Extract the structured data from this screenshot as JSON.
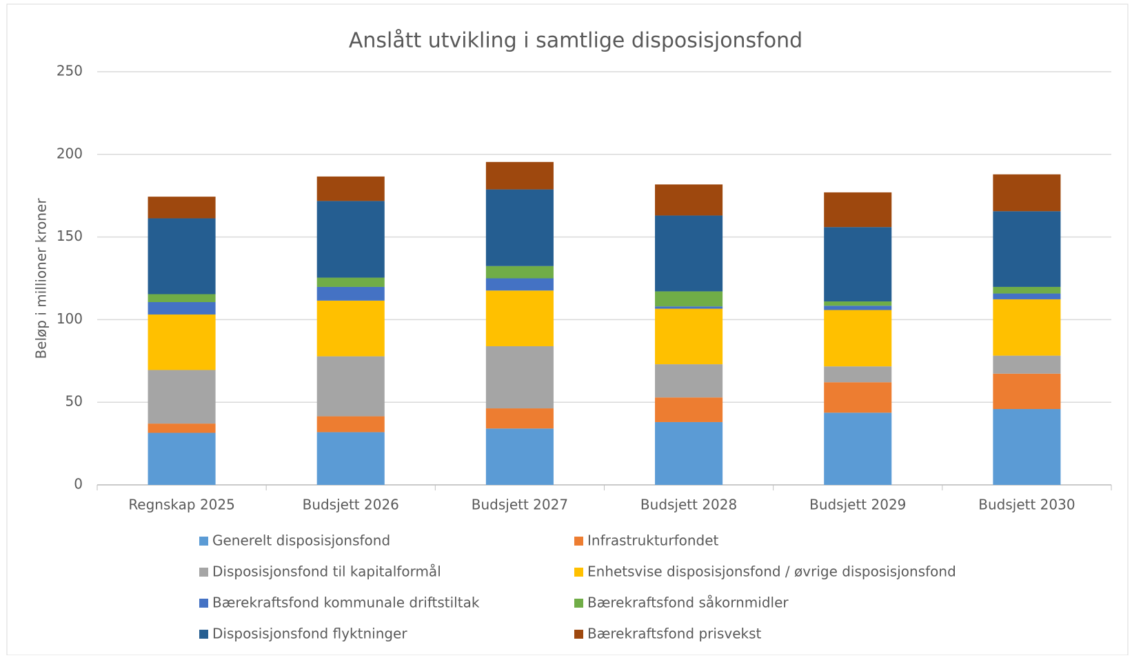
{
  "chart_data": {
    "type": "stacked_bar",
    "title": "Anslått utvikling i samtlige disposisjonsfond",
    "y_label": "Beløp i millioner kroner",
    "categories": [
      "Regnskap 2025",
      "Budsjett 2026",
      "Budsjett 2027",
      "Budsjett 2028",
      "Budsjett 2029",
      "Budsjett 2030"
    ],
    "series": [
      {
        "name": "Generelt disposisjonsfond",
        "color": "#5b9bd5",
        "values": [
          31.5,
          31.9,
          34.1,
          38.0,
          43.7,
          45.9
        ]
      },
      {
        "name": "Infrastrukturfondet",
        "color": "#ed7d31",
        "values": [
          5.6,
          9.6,
          12.2,
          14.9,
          18.4,
          21.4
        ]
      },
      {
        "name": "Disposisjonsfond til kapitalformål",
        "color": "#a5a5a5",
        "values": [
          32.4,
          36.3,
          37.6,
          20.1,
          9.6,
          10.9
        ]
      },
      {
        "name": "Enhetsvise disposisjonsfond / øvrige disposisjonsfond",
        "color": "#ffc000",
        "values": [
          33.6,
          33.7,
          33.7,
          33.6,
          34.1,
          34.1
        ]
      },
      {
        "name": "Bærekraftsfond kommunale driftstiltak",
        "color": "#4472c4",
        "values": [
          7.5,
          8.3,
          7.4,
          1.4,
          2.6,
          3.5
        ]
      },
      {
        "name": "Bærekraftsfond såkornmidler",
        "color": "#70ad47",
        "values": [
          4.8,
          5.6,
          7.4,
          9.1,
          2.6,
          4.0
        ]
      },
      {
        "name": "Disposisjonsfond flyktninger",
        "color": "#255e91",
        "values": [
          45.9,
          46.4,
          46.4,
          45.9,
          45.0,
          45.8
        ]
      },
      {
        "name": "Bærekraftsfond prisvekst",
        "color": "#9e480e",
        "values": [
          13.1,
          14.8,
          16.6,
          18.8,
          21.0,
          22.3
        ]
      }
    ],
    "ylim": [
      0,
      250
    ],
    "yticks": [
      0,
      50,
      100,
      150,
      200,
      250
    ],
    "grid": true,
    "legend": "bottom"
  }
}
